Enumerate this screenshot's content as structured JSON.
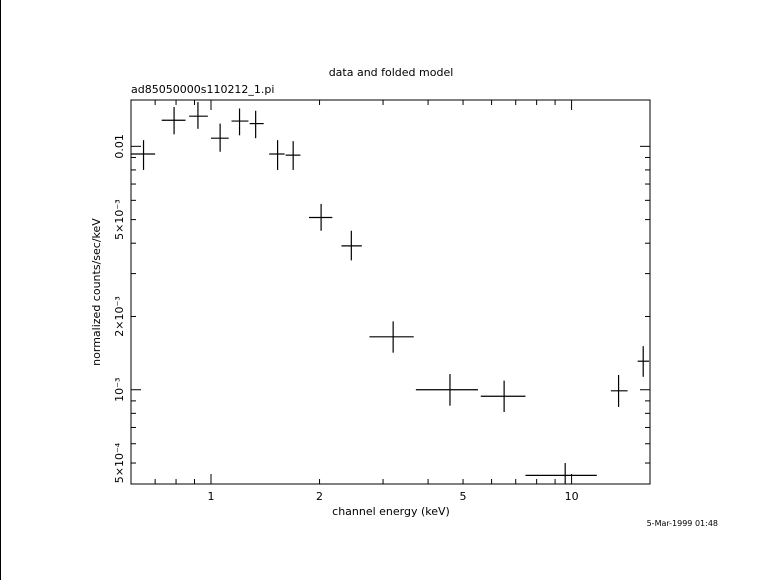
{
  "chart_data": {
    "type": "scatter",
    "title": "data and folded model",
    "subtitle": "ad85050000s110212_1.pi",
    "xlabel": "channel energy (keV)",
    "ylabel": "normalized counts/sec/keV",
    "x_scale": "log",
    "y_scale": "log",
    "xlim": [
      0.6,
      16.5
    ],
    "ylim": [
      0.00041,
      0.0155
    ],
    "x_ticks": [
      {
        "value": 1,
        "label": "1"
      },
      {
        "value": 2,
        "label": "2"
      },
      {
        "value": 5,
        "label": "5"
      },
      {
        "value": 10,
        "label": "10"
      }
    ],
    "y_ticks": [
      {
        "value": 0.01,
        "label": "0.01"
      },
      {
        "value": 0.005,
        "label": "5×10⁻³"
      },
      {
        "value": 0.002,
        "label": "2×10⁻³"
      },
      {
        "value": 0.001,
        "label": "10⁻³"
      },
      {
        "value": 0.0005,
        "label": "5×10⁻⁴"
      }
    ],
    "points": [
      {
        "x": 0.65,
        "y": 0.0093,
        "xlo": 0.6,
        "xhi": 0.7,
        "ylo": 0.008,
        "yhi": 0.0106
      },
      {
        "x": 0.79,
        "y": 0.0128,
        "xlo": 0.73,
        "xhi": 0.85,
        "ylo": 0.0112,
        "yhi": 0.0145
      },
      {
        "x": 0.92,
        "y": 0.0133,
        "xlo": 0.87,
        "xhi": 0.98,
        "ylo": 0.0118,
        "yhi": 0.0152
      },
      {
        "x": 1.06,
        "y": 0.0108,
        "xlo": 1.0,
        "xhi": 1.12,
        "ylo": 0.0095,
        "yhi": 0.0124
      },
      {
        "x": 1.2,
        "y": 0.0127,
        "xlo": 1.14,
        "xhi": 1.27,
        "ylo": 0.0111,
        "yhi": 0.0143
      },
      {
        "x": 1.33,
        "y": 0.0124,
        "xlo": 1.28,
        "xhi": 1.4,
        "ylo": 0.0108,
        "yhi": 0.014
      },
      {
        "x": 1.53,
        "y": 0.0093,
        "xlo": 1.45,
        "xhi": 1.6,
        "ylo": 0.008,
        "yhi": 0.0106
      },
      {
        "x": 1.69,
        "y": 0.0092,
        "xlo": 1.61,
        "xhi": 1.77,
        "ylo": 0.008,
        "yhi": 0.0105
      },
      {
        "x": 2.02,
        "y": 0.0051,
        "xlo": 1.87,
        "xhi": 2.17,
        "ylo": 0.0045,
        "yhi": 0.0058
      },
      {
        "x": 2.45,
        "y": 0.0039,
        "xlo": 2.3,
        "xhi": 2.62,
        "ylo": 0.0034,
        "yhi": 0.0045
      },
      {
        "x": 3.2,
        "y": 0.00165,
        "xlo": 2.75,
        "xhi": 3.65,
        "ylo": 0.00142,
        "yhi": 0.00191
      },
      {
        "x": 4.6,
        "y": 0.001,
        "xlo": 3.7,
        "xhi": 5.5,
        "ylo": 0.00086,
        "yhi": 0.00116
      },
      {
        "x": 6.5,
        "y": 0.00094,
        "xlo": 5.6,
        "xhi": 7.45,
        "ylo": 0.00081,
        "yhi": 0.00109
      },
      {
        "x": 9.6,
        "y": 0.000445,
        "xlo": 7.45,
        "xhi": 11.75,
        "ylo": 0.00041,
        "yhi": 0.0005
      },
      {
        "x": 13.5,
        "y": 0.00099,
        "xlo": 12.85,
        "xhi": 14.3,
        "ylo": 0.00085,
        "yhi": 0.00115
      },
      {
        "x": 15.8,
        "y": 0.00131,
        "xlo": 15.25,
        "xhi": 16.4,
        "ylo": 0.00113,
        "yhi": 0.00151
      }
    ]
  },
  "timestamp": "5-Mar-1999 01:48"
}
